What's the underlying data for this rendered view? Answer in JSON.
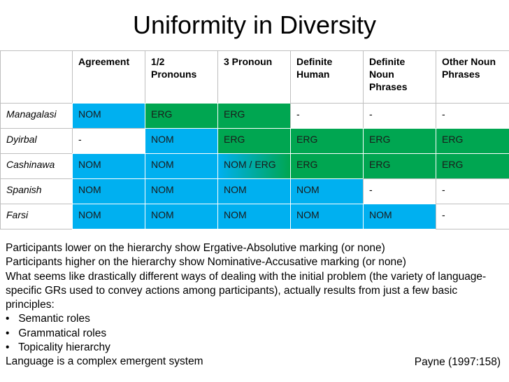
{
  "title": "Uniformity in Diversity",
  "table": {
    "header": [
      "",
      "Agreement",
      "1/2 Pronouns",
      "3 Pronoun",
      "Definite Human",
      "Definite Noun Phrases",
      "Other Noun Phrases"
    ],
    "rows": [
      {
        "label": "Managalasi",
        "cells": [
          "NOM",
          "ERG",
          "ERG",
          "-",
          "-",
          "-"
        ],
        "fills": [
          "#00b0f0",
          "#00a651",
          "#00a651",
          "#ffffff",
          "#ffffff",
          "#ffffff"
        ]
      },
      {
        "label": "Dyirbal",
        "cells": [
          "-",
          "NOM",
          "ERG",
          "ERG",
          "ERG",
          "ERG"
        ],
        "fills": [
          "#ffffff",
          "#00b0f0",
          "#00a651",
          "#00a651",
          "#00a651",
          "#00a651"
        ]
      },
      {
        "label": "Cashinawa",
        "cells": [
          "NOM",
          "NOM",
          "NOM / ERG",
          "ERG",
          "ERG",
          "ERG"
        ],
        "fills": [
          "#00b0f0",
          "#00b0f0",
          "linear-gradient(to right, #00b0f0, #00a651)",
          "#00a651",
          "#00a651",
          "#00a651"
        ]
      },
      {
        "label": "Spanish",
        "cells": [
          "NOM",
          "NOM",
          "NOM",
          "NOM",
          "-",
          "-"
        ],
        "fills": [
          "#00b0f0",
          "#00b0f0",
          "#00b0f0",
          "#00b0f0",
          "#ffffff",
          "#ffffff"
        ]
      },
      {
        "label": "Farsi",
        "cells": [
          "NOM",
          "NOM",
          "NOM",
          "NOM",
          "NOM",
          "-"
        ],
        "fills": [
          "#00b0f0",
          "#00b0f0",
          "#00b0f0",
          "#00b0f0",
          "#00b0f0",
          "#ffffff"
        ]
      }
    ]
  },
  "notes": [
    "Participants lower on the hierarchy show Ergative-Absolutive marking (or none)",
    "Participants higher on the hierarchy show Nominative-Accusative marking (or none)",
    "What seems like drastically different ways of dealing with the initial problem (the variety of language-specific GRs used to convey actions among participants), actually results from just a few basic principles:",
    "•   Semantic roles",
    "•   Grammatical roles",
    "•   Topicality hierarchy",
    "Language is a complex emergent system"
  ],
  "citation": "Payne (1997:158)"
}
